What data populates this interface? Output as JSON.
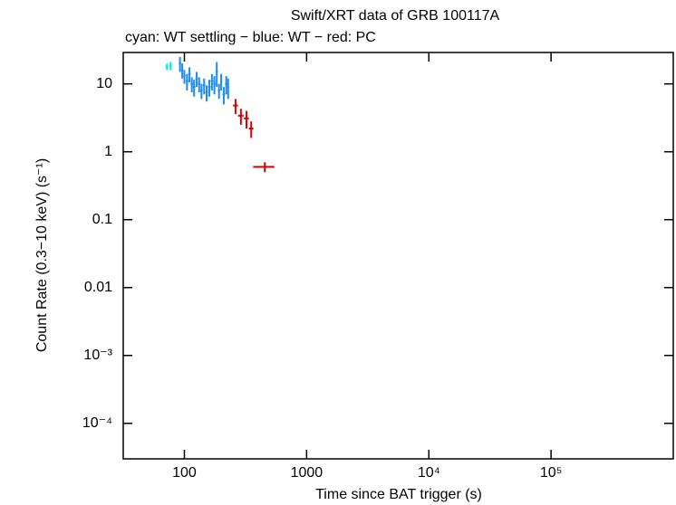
{
  "chart_data": {
    "type": "scatter",
    "title": "Swift/XRT data of GRB 100117A",
    "subtitle": "cyan: WT settling − blue: WT − red: PC",
    "x_label": "Time since BAT trigger (s)",
    "y_label": "Count Rate (0.3−10 keV) (s⁻¹)",
    "log_x": true,
    "log_y": true,
    "xlim": [
      31.6,
      1000000
    ],
    "ylim": [
      3e-05,
      29
    ],
    "xticks": [
      100,
      1000,
      {
        "value": 10000,
        "label": "10⁴"
      },
      {
        "value": 100000,
        "label": "10⁵"
      }
    ],
    "yticks": [
      {
        "value": 0.0001,
        "label": "10⁻⁴"
      },
      {
        "value": 0.001,
        "label": "10⁻³"
      },
      0.01,
      0.1,
      1,
      10
    ],
    "series": [
      {
        "name": "WT settling",
        "color": "#00f0f0",
        "x": [
          72,
          77
        ],
        "xerr": [
          2,
          2
        ],
        "values": [
          18,
          18.5
        ],
        "yerr": [
          2,
          2.5
        ]
      },
      {
        "name": "WT",
        "color": "#1e8cf0",
        "x": [
          92,
          96,
          100,
          105,
          110,
          115,
          120,
          126,
          132,
          138,
          145,
          152,
          160,
          168,
          176,
          184,
          192,
          200,
          210,
          220,
          228
        ],
        "xerr": [
          2,
          2,
          2,
          2.5,
          2.5,
          2.5,
          3,
          3,
          3,
          3,
          3.5,
          3.5,
          4,
          4,
          4,
          4,
          4,
          4,
          5,
          5,
          4
        ],
        "values": [
          20,
          16,
          13,
          11,
          14,
          10,
          9,
          12,
          10,
          8,
          9.5,
          7.5,
          9,
          11,
          10,
          15,
          8,
          11,
          7,
          10,
          9
        ],
        "yerr": [
          5,
          4,
          3,
          3,
          3.5,
          2.5,
          2.5,
          3,
          2.5,
          2,
          2.5,
          2,
          2.5,
          3,
          3,
          6,
          2,
          3,
          2,
          3,
          3
        ]
      },
      {
        "name": "PC",
        "color": "#e00000",
        "x": [
          262,
          290,
          322,
          352,
          455
        ],
        "xerr": [
          12,
          15,
          15,
          15,
          90
        ],
        "values": [
          4.8,
          3.4,
          3.1,
          2.2,
          0.6
        ],
        "yerr": [
          1.2,
          0.9,
          0.9,
          0.6,
          0.1
        ]
      }
    ]
  }
}
